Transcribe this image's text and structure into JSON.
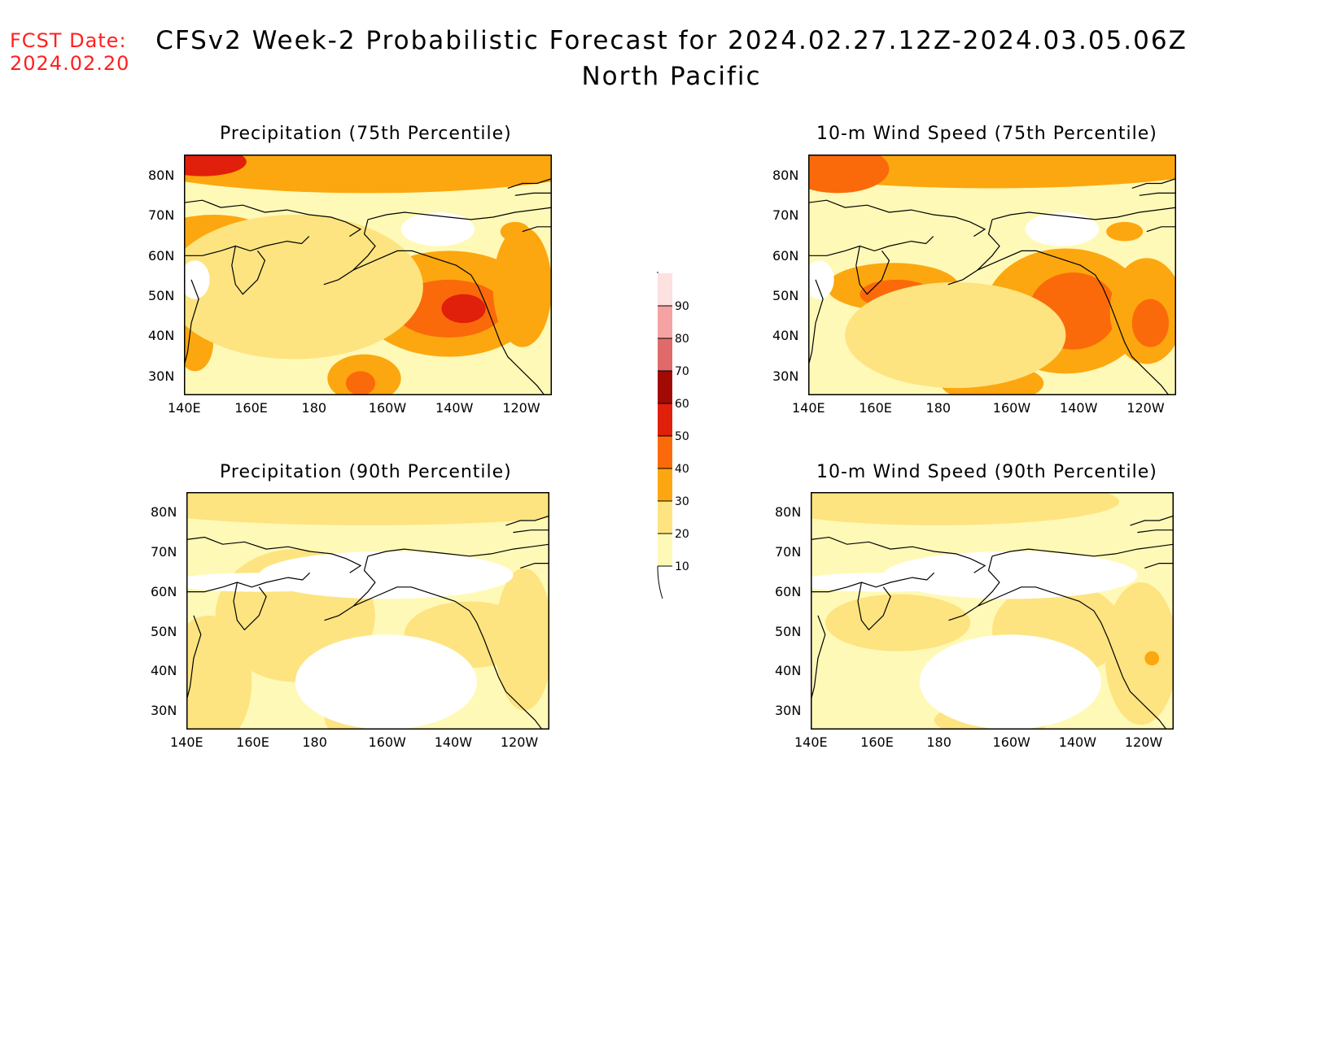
{
  "header": {
    "fcst_label": "FCST Date:",
    "fcst_date": "2024.02.20",
    "title": "CFSv2 Week-2 Probabilistic Forecast for 2024.02.27.12Z-2024.03.05.06Z",
    "subtitle": "North Pacific"
  },
  "axes": {
    "lat_labels": [
      "80N",
      "70N",
      "60N",
      "50N",
      "40N",
      "30N"
    ],
    "lon_labels": [
      "140E",
      "160E",
      "180",
      "160W",
      "140W",
      "120W"
    ]
  },
  "panels": [
    {
      "id": "precip75",
      "title": "Precipitation (75th Percentile)"
    },
    {
      "id": "wind75",
      "title": "10-m Wind Speed (75th Percentile)"
    },
    {
      "id": "precip90",
      "title": "Precipitation (90th Percentile)"
    },
    {
      "id": "wind90",
      "title": "10-m Wind Speed (90th Percentile)"
    }
  ],
  "colorbar": {
    "levels": [
      "10",
      "20",
      "30",
      "40",
      "50",
      "60",
      "70",
      "80",
      "90"
    ],
    "colors": [
      "#fff9b8",
      "#fde480",
      "#fca70f",
      "#fb6a0a",
      "#e0200a",
      "#a20a04",
      "#e06a6a",
      "#f4a2a2",
      "#fde0e0"
    ]
  }
}
